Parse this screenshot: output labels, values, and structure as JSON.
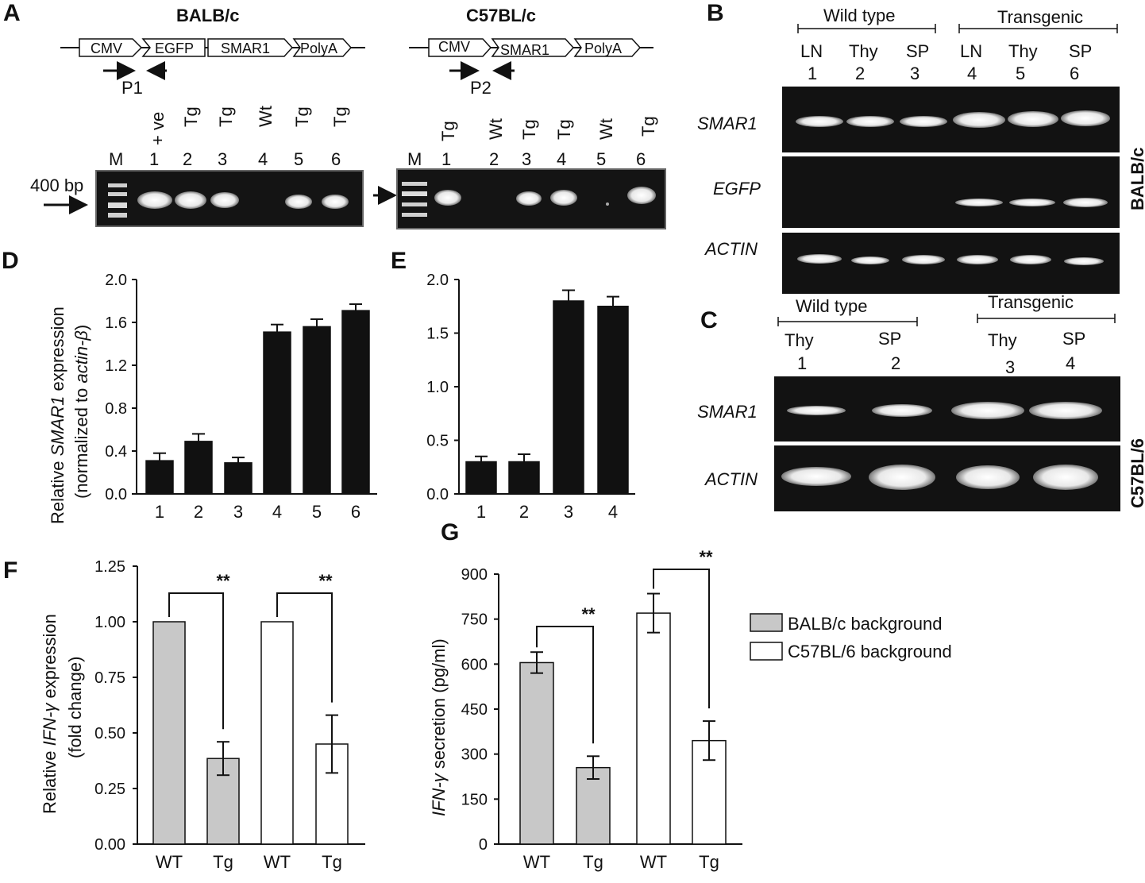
{
  "panel_letters": {
    "a": "A",
    "b": "B",
    "c": "C",
    "d": "D",
    "e": "E",
    "f": "F",
    "g": "G"
  },
  "panel_a": {
    "left": {
      "title": "BALB/c",
      "construct": [
        "CMV",
        "EGFP",
        "SMAR1",
        "PolyA"
      ],
      "primer": "P1",
      "marker": "M",
      "size_marker": "400 bp",
      "lane_labels": [
        "+ ve",
        "Tg",
        "Tg",
        "Wt",
        "Tg",
        "Tg"
      ],
      "lane_numbers": [
        "1",
        "2",
        "3",
        "4",
        "5",
        "6"
      ]
    },
    "right": {
      "title": "C57BL/c",
      "construct": [
        "CMV",
        "SMAR1",
        "PolyA"
      ],
      "primer": "P2",
      "marker": "M",
      "lane_labels": [
        "Tg",
        "Wt",
        "Tg",
        "Tg",
        "Wt",
        "Tg"
      ],
      "lane_numbers": [
        "1",
        "2",
        "3",
        "4",
        "5",
        "6"
      ]
    }
  },
  "panel_b": {
    "group_wild": "Wild type",
    "group_tg": "Transgenic",
    "tissues": [
      "LN",
      "Thy",
      "SP",
      "LN",
      "Thy",
      "SP"
    ],
    "lane_numbers": [
      "1",
      "2",
      "3",
      "4",
      "5",
      "6"
    ],
    "rows": [
      "SMAR1",
      "EGFP",
      "ACTIN"
    ],
    "side_label": "BALB/c"
  },
  "panel_c": {
    "group_wild": "Wild type",
    "group_tg": "Transgenic",
    "tissues": [
      "Thy",
      "SP",
      "Thy",
      "SP"
    ],
    "lane_numbers": [
      "1",
      "2",
      "3",
      "4"
    ],
    "rows": [
      "SMAR1",
      "ACTIN"
    ],
    "side_label": "C57BL/6"
  },
  "chart_data": [
    {
      "id": "D",
      "type": "bar",
      "categories": [
        "1",
        "2",
        "3",
        "4",
        "5",
        "6"
      ],
      "values": [
        0.31,
        0.49,
        0.29,
        1.51,
        1.56,
        1.71
      ],
      "errors": [
        0.07,
        0.07,
        0.05,
        0.07,
        0.07,
        0.06
      ],
      "ylabel_pre": "Relative ",
      "ylabel_ital": "SMAR1",
      "ylabel_post": " expression",
      "ylabel2_pre": "(normalized to ",
      "ylabel2_ital": "actin-β",
      "ylabel2_post": ")",
      "ylim": [
        0,
        2.0
      ],
      "yticks": [
        "0.0",
        "0.4",
        "0.8",
        "1.2",
        "1.6",
        "2.0"
      ],
      "bar_color": "#111111"
    },
    {
      "id": "E",
      "type": "bar",
      "categories": [
        "1",
        "2",
        "3",
        "4"
      ],
      "values": [
        0.3,
        0.3,
        1.8,
        1.75
      ],
      "errors": [
        0.05,
        0.07,
        0.1,
        0.09
      ],
      "ylim": [
        0,
        2.0
      ],
      "yticks": [
        "0.0",
        "0.5",
        "1.0",
        "1.5",
        "2.0"
      ],
      "bar_color": "#111111"
    },
    {
      "id": "F",
      "type": "bar",
      "categories": [
        "WT",
        "Tg",
        "WT",
        "Tg"
      ],
      "values": [
        1.0,
        0.385,
        1.0,
        0.45
      ],
      "errors": [
        0,
        0.075,
        0,
        0.13
      ],
      "colors": [
        "#c8c8c8",
        "#c8c8c8",
        "#ffffff",
        "#ffffff"
      ],
      "ylabel_pre": "Relative ",
      "ylabel_ital": "IFN-γ",
      "ylabel_post": " expression",
      "ylabel2": "(fold change)",
      "ylim": [
        0,
        1.25
      ],
      "yticks": [
        "0.00",
        "0.25",
        "0.50",
        "0.75",
        "1.00",
        "1.25"
      ],
      "significance": [
        "**",
        "**"
      ]
    },
    {
      "id": "G",
      "type": "bar",
      "categories": [
        "WT",
        "Tg",
        "WT",
        "Tg"
      ],
      "values": [
        605,
        255,
        770,
        345
      ],
      "errors": [
        35,
        38,
        65,
        65
      ],
      "colors": [
        "#c8c8c8",
        "#c8c8c8",
        "#ffffff",
        "#ffffff"
      ],
      "ylabel_ital": "IFN-γ",
      "ylabel_post": " secretion (pg/ml)",
      "ylim": [
        0,
        900
      ],
      "yticks": [
        "0",
        "150",
        "300",
        "450",
        "600",
        "750",
        "900"
      ],
      "significance": [
        "**",
        "**"
      ]
    }
  ],
  "legend": [
    {
      "label": "BALB/c background",
      "color": "#c8c8c8"
    },
    {
      "label": "C57BL/6 background",
      "color": "#ffffff"
    }
  ]
}
